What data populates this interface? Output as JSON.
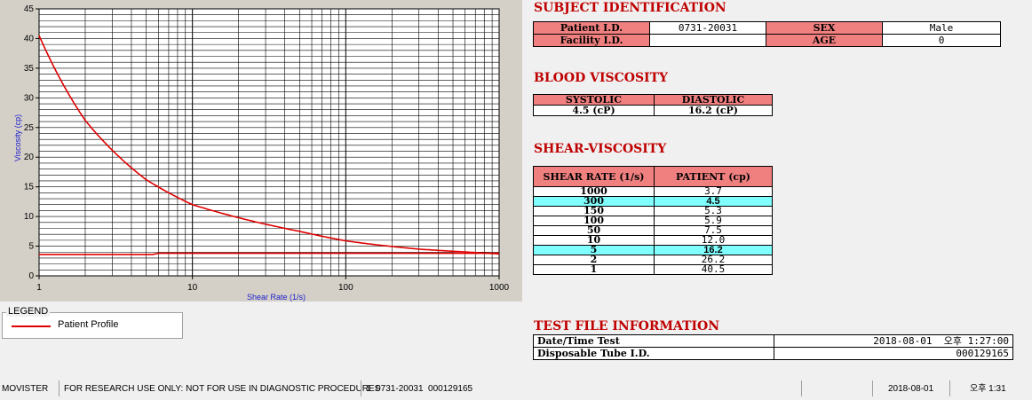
{
  "chart_data": {
    "type": "line",
    "xscale": "log",
    "xlim": [
      1,
      1000
    ],
    "ylim": [
      0,
      45
    ],
    "xticks": [
      "1",
      "10",
      "100",
      "1000"
    ],
    "yticks": [
      "0",
      "5",
      "10",
      "15",
      "20",
      "25",
      "30",
      "35",
      "40",
      "45"
    ],
    "xlabel": "Shear Rate (1/s)",
    "ylabel": "Viscosity (cp)",
    "grid": true,
    "series": [
      {
        "name": "Patient Profile",
        "color": "#e00000",
        "x": [
          1,
          2,
          5,
          10,
          50,
          100,
          150,
          300,
          1000
        ],
        "y": [
          40.5,
          26.2,
          16.2,
          12.0,
          7.5,
          5.9,
          5.3,
          4.5,
          3.7
        ]
      },
      {
        "color": "#e00000",
        "x": [
          1,
          5.5,
          6,
          1000
        ],
        "y": [
          3.6,
          3.6,
          3.8,
          3.8
        ]
      }
    ]
  },
  "legend": {
    "title": "LEGEND",
    "label": "Patient Profile"
  },
  "subject": {
    "title": "SUBJECT IDENTIFICATION",
    "patient_id_label": "Patient I.D.",
    "patient_id": "0731-20031",
    "sex_label": "SEX",
    "sex": "Male",
    "facility_id_label": "Facility I.D.",
    "facility_id": "",
    "age_label": "AGE",
    "age": "0"
  },
  "blood_viscosity": {
    "title": "BLOOD VISCOSITY",
    "systolic_label": "SYSTOLIC",
    "diastolic_label": "DIASTOLIC",
    "systolic": "4.5 (cP)",
    "diastolic": "16.2 (cP)"
  },
  "shear_viscosity": {
    "title": "SHEAR-VISCOSITY",
    "headers": [
      "SHEAR RATE (1/s)",
      "PATIENT (cp)"
    ],
    "rows": [
      [
        "1000",
        "3.7"
      ],
      [
        "300",
        "4.5"
      ],
      [
        "150",
        "5.3"
      ],
      [
        "100",
        "5.9"
      ],
      [
        "50",
        "7.5"
      ],
      [
        "10",
        "12.0"
      ],
      [
        "5",
        "16.2"
      ],
      [
        "2",
        "26.2"
      ],
      [
        "1",
        "40.5"
      ]
    ],
    "highlight_color": "#80ffff"
  },
  "test_file": {
    "title": "TEST FILE INFORMATION",
    "datetime_label": "Date/Time Test",
    "datetime": "2018-08-01  오후 1:27:00",
    "tube_label": "Disposable Tube I.D.",
    "tube_id": "000129165"
  },
  "status_bar": {
    "app": "MOVISTER",
    "notice": "FOR RESEARCH USE ONLY: NOT FOR USE IN DIAGNOSTIC PROCEDURES",
    "record": "1  0731-20031  000129165",
    "empty": "",
    "date": "2018-08-01",
    "time": "오후 1:31"
  },
  "colors": {
    "accent_header": "#f08080",
    "title_red": "#c00000",
    "curve": "#e00000"
  }
}
